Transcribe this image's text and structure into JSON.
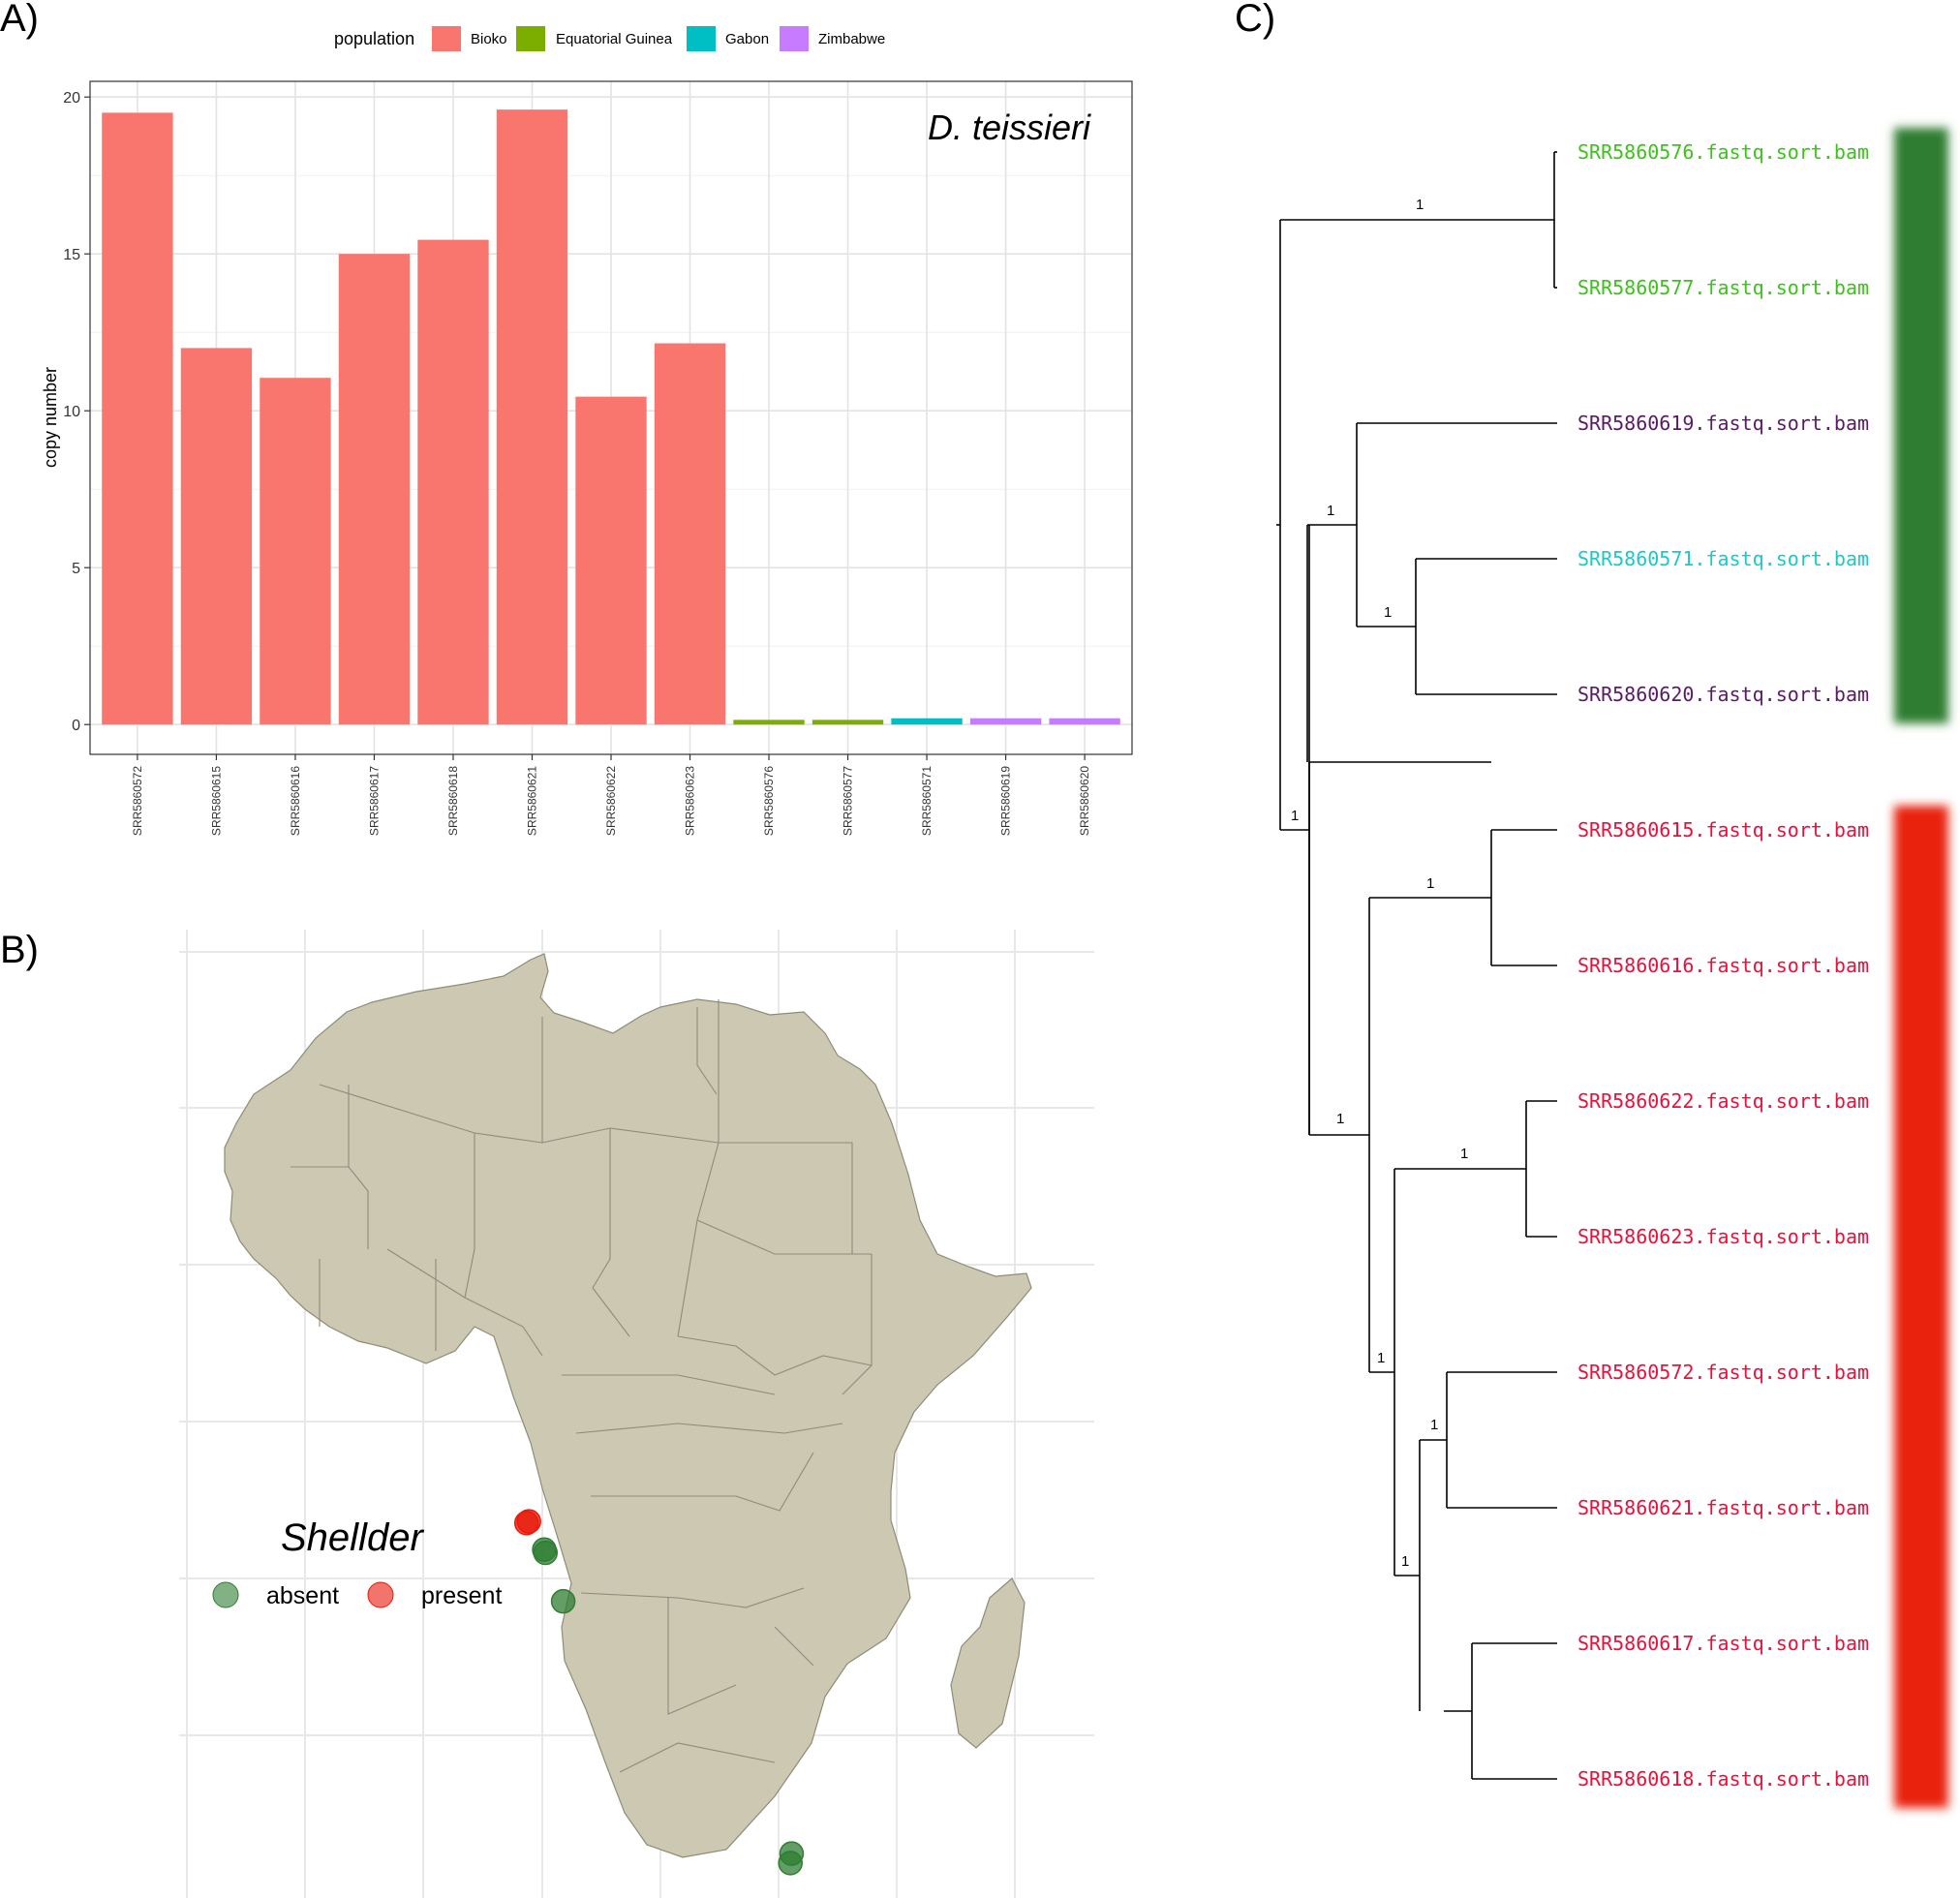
{
  "panels": {
    "a_label": "A)",
    "b_label": "B)",
    "c_label": "C)"
  },
  "colors": {
    "Bioko": "#F8766D",
    "Equatorial Guinea": "#7CAE00",
    "Gabon": "#00BFC4",
    "Zimbabwe": "#C77CFF",
    "land": "#CCC8B2",
    "absent": "#2E7D32",
    "present": "#E8190A",
    "tip_green": "#3CC21B",
    "tip_purple": "#5A1A66",
    "tip_cyan": "#1EC8C8",
    "tip_red": "#E8113C",
    "bar_green": "#2E7D32",
    "bar_red": "#E8220A"
  },
  "chart_data": [
    {
      "type": "bar",
      "species_label": "D. teissieri",
      "ylabel": "copy number",
      "xlabel": "",
      "ylim": [
        0,
        20.5
      ],
      "yticks": [
        0,
        5,
        10,
        15,
        20
      ],
      "grid": true,
      "legend": {
        "title": "population",
        "placement": "top",
        "entries": [
          "Bioko",
          "Equatorial Guinea",
          "Gabon",
          "Zimbabwe"
        ]
      },
      "categories": [
        "SRR5860572",
        "SRR5860615",
        "SRR5860616",
        "SRR5860617",
        "SRR5860618",
        "SRR5860621",
        "SRR5860622",
        "SRR5860623",
        "SRR5860576",
        "SRR5860577",
        "SRR5860571",
        "SRR5860619",
        "SRR5860620"
      ],
      "values": [
        19.5,
        12.0,
        11.05,
        15.0,
        15.45,
        19.6,
        10.45,
        12.15,
        0.15,
        0.15,
        0.2,
        0.2,
        0.2
      ],
      "population": [
        "Bioko",
        "Bioko",
        "Bioko",
        "Bioko",
        "Bioko",
        "Bioko",
        "Bioko",
        "Bioko",
        "Equatorial Guinea",
        "Equatorial Guinea",
        "Gabon",
        "Zimbabwe",
        "Zimbabwe"
      ]
    }
  ],
  "map": {
    "title": "Shellder",
    "legend": {
      "entries": [
        "absent",
        "present"
      ]
    },
    "points": [
      {
        "status": "present",
        "lon": 8.7,
        "lat": 3.5
      },
      {
        "status": "present",
        "lon": 8.9,
        "lat": 3.6
      },
      {
        "status": "absent",
        "lon": 10.2,
        "lat": 1.8
      },
      {
        "status": "absent",
        "lon": 10.3,
        "lat": 1.6
      },
      {
        "status": "absent",
        "lon": 11.8,
        "lat": -1.5
      },
      {
        "status": "absent",
        "lon": 31.1,
        "lat": -17.6
      },
      {
        "status": "absent",
        "lon": 31.0,
        "lat": -18.2
      }
    ]
  },
  "tree": {
    "tips": [
      {
        "label": "SRR5860576.fastq.sort.bam",
        "color": "green"
      },
      {
        "label": "SRR5860577.fastq.sort.bam",
        "color": "green"
      },
      {
        "label": "SRR5860619.fastq.sort.bam",
        "color": "purple"
      },
      {
        "label": "SRR5860571.fastq.sort.bam",
        "color": "cyan"
      },
      {
        "label": "SRR5860620.fastq.sort.bam",
        "color": "purple"
      },
      {
        "label": "SRR5860615.fastq.sort.bam",
        "color": "red"
      },
      {
        "label": "SRR5860616.fastq.sort.bam",
        "color": "red"
      },
      {
        "label": "SRR5860622.fastq.sort.bam",
        "color": "red"
      },
      {
        "label": "SRR5860623.fastq.sort.bam",
        "color": "red"
      },
      {
        "label": "SRR5860572.fastq.sort.bam",
        "color": "red"
      },
      {
        "label": "SRR5860621.fastq.sort.bam",
        "color": "red"
      },
      {
        "label": "SRR5860617.fastq.sort.bam",
        "color": "red"
      },
      {
        "label": "SRR5860618.fastq.sort.bam",
        "color": "red"
      }
    ],
    "support": [
      "1",
      "1",
      "1",
      "1",
      "1",
      "1",
      "1",
      "1",
      "1",
      "1"
    ],
    "side_bars": [
      {
        "status": "absent",
        "from_tip": 0,
        "to_tip": 4
      },
      {
        "status": "present",
        "from_tip": 5,
        "to_tip": 12
      }
    ]
  }
}
